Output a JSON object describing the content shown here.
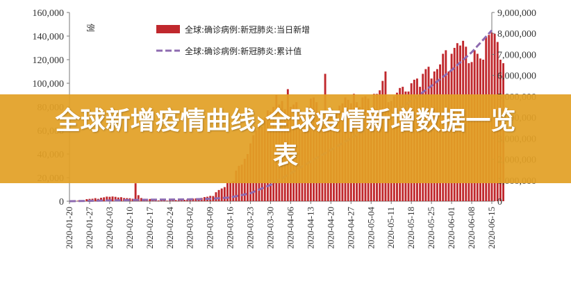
{
  "banner": {
    "title": "全球新增疫情曲线›全球疫情新增数据一览表"
  },
  "chart_data": {
    "type": "bar+line",
    "unit_label": "例",
    "legend_placement": "top-center",
    "grid": false,
    "colors": {
      "bar": "#c0282d",
      "line": "#8e6bb0"
    },
    "left_axis": {
      "ylim": [
        0,
        160000
      ],
      "ticks": [
        "0",
        "20,000",
        "40,000",
        "60,000",
        "80,000",
        "100,000",
        "120,000",
        "140,000",
        "160,000"
      ]
    },
    "right_axis": {
      "ylim": [
        0,
        9000000
      ],
      "ticks": [
        "0",
        "1,000,000",
        "2,000,000",
        "3,000,000",
        "4,000,000",
        "5,000,000",
        "6,000,000",
        "7,000,000",
        "8,000,000",
        "9,000,000"
      ]
    },
    "x_start": "2020-01-20",
    "x_end": "2020-06-15",
    "x_tick_labels": [
      "2020-01-20",
      "2020-01-27",
      "2020-02-03",
      "2020-02-10",
      "2020-02-17",
      "2020-02-24",
      "2020-03-02",
      "2020-03-09",
      "2020-03-16",
      "2020-03-23",
      "2020-03-30",
      "2020-04-06",
      "2020-04-13",
      "2020-04-20",
      "2020-04-27",
      "2020-05-04",
      "2020-05-11",
      "2020-05-18",
      "2020-05-25",
      "2020-06-01",
      "2020-06-08",
      "2020-06-15"
    ],
    "series": [
      {
        "name": "全球:确诊病例:新冠肺炎:当日新增",
        "kind": "bar",
        "axis": "left",
        "values": [
          100,
          150,
          250,
          450,
          690,
          790,
          1750,
          1980,
          2100,
          2600,
          2000,
          2900,
          3300,
          3900,
          3750,
          4000,
          3700,
          3150,
          3400,
          2700,
          2600,
          2500,
          2100,
          15200,
          5100,
          2700,
          2100,
          1700,
          1900,
          1400,
          1150,
          650,
          1400,
          700,
          500,
          1900,
          600,
          1000,
          600,
          800,
          1200,
          1450,
          1900,
          2200,
          2400,
          2300,
          2800,
          3500,
          3800,
          4500,
          4400,
          7600,
          9500,
          10800,
          12000,
          15400,
          16000,
          17000,
          26000,
          30000,
          31000,
          36000,
          40000,
          49000,
          56000,
          60000,
          64000,
          63000,
          71000,
          77000,
          76000,
          80000,
          90000,
          82000,
          85000,
          78000,
          95000,
          80000,
          82000,
          84000,
          77000,
          74000,
          72000,
          80000,
          87000,
          88000,
          84000,
          76000,
          70000,
          108000,
          75000,
          77000,
          73000,
          75000,
          81000,
          83000,
          88000,
          86000,
          83000,
          91000,
          84000,
          80000,
          88000,
          89000,
          87000,
          77000,
          91000,
          91000,
          94000,
          102000,
          110000,
          84000,
          85000,
          89000,
          92000,
          96000,
          97000,
          93000,
          93000,
          100000,
          103000,
          104000,
          97000,
          108000,
          112000,
          114000,
          104000,
          110000,
          112000,
          116000,
          125000,
          128000,
          110000,
          125000,
          130000,
          134000,
          132000,
          136000,
          131000,
          117000,
          118000,
          128000,
          125000,
          121000,
          120000,
          139000,
          141000,
          143000,
          142000,
          135000,
          120000,
          117000
        ]
      },
      {
        "name": "全球:确诊病例:新冠肺炎:累计值",
        "kind": "line",
        "axis": "right",
        "knots": [
          [
            "2020-01-20",
            0
          ],
          [
            "2020-02-17",
            73000
          ],
          [
            "2020-03-02",
            90000
          ],
          [
            "2020-03-09",
            115000
          ],
          [
            "2020-03-16",
            180000
          ],
          [
            "2020-03-23",
            380000
          ],
          [
            "2020-03-30",
            780000
          ],
          [
            "2020-04-06",
            1330000
          ],
          [
            "2020-04-13",
            1900000
          ],
          [
            "2020-04-20",
            2450000
          ],
          [
            "2020-04-27",
            3000000
          ],
          [
            "2020-05-04",
            3550000
          ],
          [
            "2020-05-11",
            4150000
          ],
          [
            "2020-05-18",
            4800000
          ],
          [
            "2020-05-25",
            5500000
          ],
          [
            "2020-06-01",
            6250000
          ],
          [
            "2020-06-08",
            7100000
          ],
          [
            "2020-06-15",
            8150000
          ]
        ]
      }
    ]
  }
}
